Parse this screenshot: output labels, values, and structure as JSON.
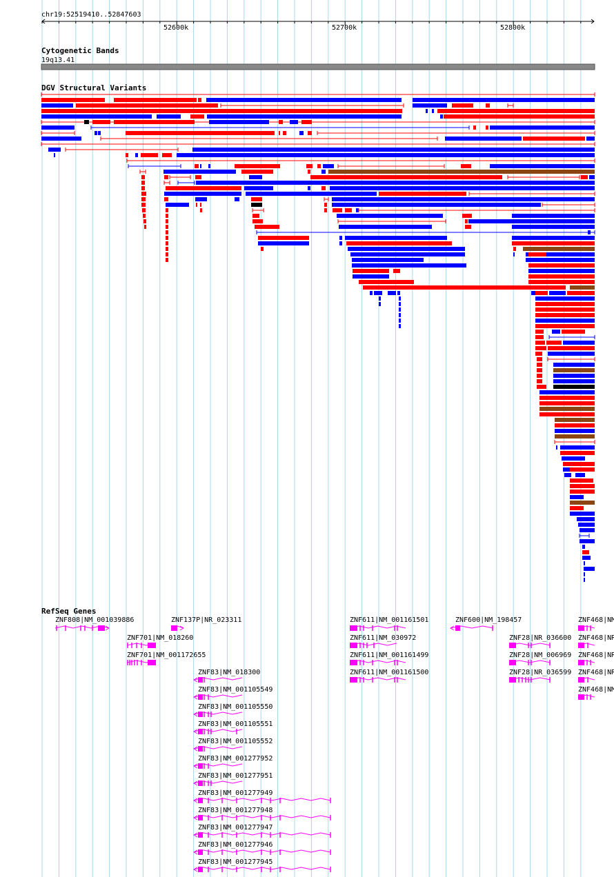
{
  "region": "chr19:52519410..52847603",
  "ruler": {
    "ticks": [
      "52600k",
      "52700k",
      "52800k"
    ]
  },
  "tracks": {
    "cytobands": {
      "title": "Cytogenetic Bands",
      "band_label": "19q13.41"
    },
    "dgv": {
      "title": "DGV Structural Variants"
    },
    "refseq": {
      "title": "RefSeq Genes"
    }
  },
  "genes": [
    {
      "label": "ZNF808|NM_001039886"
    },
    {
      "label": "ZNF137P|NR_023311"
    },
    {
      "label": "ZNF701|NM_018260"
    },
    {
      "label": "ZNF701|NM_001172655"
    },
    {
      "label": "ZNF83|NM_018300"
    },
    {
      "label": "ZNF83|NM_001105549"
    },
    {
      "label": "ZNF83|NM_001105550"
    },
    {
      "label": "ZNF83|NM_001105551"
    },
    {
      "label": "ZNF83|NM_001105552"
    },
    {
      "label": "ZNF83|NM_001277952"
    },
    {
      "label": "ZNF83|NM_001277951"
    },
    {
      "label": "ZNF83|NM_001277949"
    },
    {
      "label": "ZNF83|NM_001277948"
    },
    {
      "label": "ZNF83|NM_001277947"
    },
    {
      "label": "ZNF83|NM_001277946"
    },
    {
      "label": "ZNF83|NM_001277945"
    },
    {
      "label": "ZNF611|NM_001161501"
    },
    {
      "label": "ZNF611|NM_030972"
    },
    {
      "label": "ZNF611|NM_001161499"
    },
    {
      "label": "ZNF611|NM_001161500"
    },
    {
      "label": "ZNF600|NM_198457"
    },
    {
      "label": "ZNF28|NR_036600"
    },
    {
      "label": "ZNF28|NM_006969"
    },
    {
      "label": "ZNF28|NR_036599"
    },
    {
      "label": "ZNF468|NM"
    },
    {
      "label": "ZNF468|NR"
    },
    {
      "label": "ZNF468|NR"
    },
    {
      "label": "ZNF468|NR"
    },
    {
      "label": "ZNF468|NM"
    }
  ],
  "colors": {
    "gain": "#ff0000",
    "loss": "#0000ff",
    "gain_loss": "#8b4513",
    "complex": "#000000",
    "gene": "#ff00ff",
    "grid": "#a8d8ee",
    "band": "#888888"
  }
}
